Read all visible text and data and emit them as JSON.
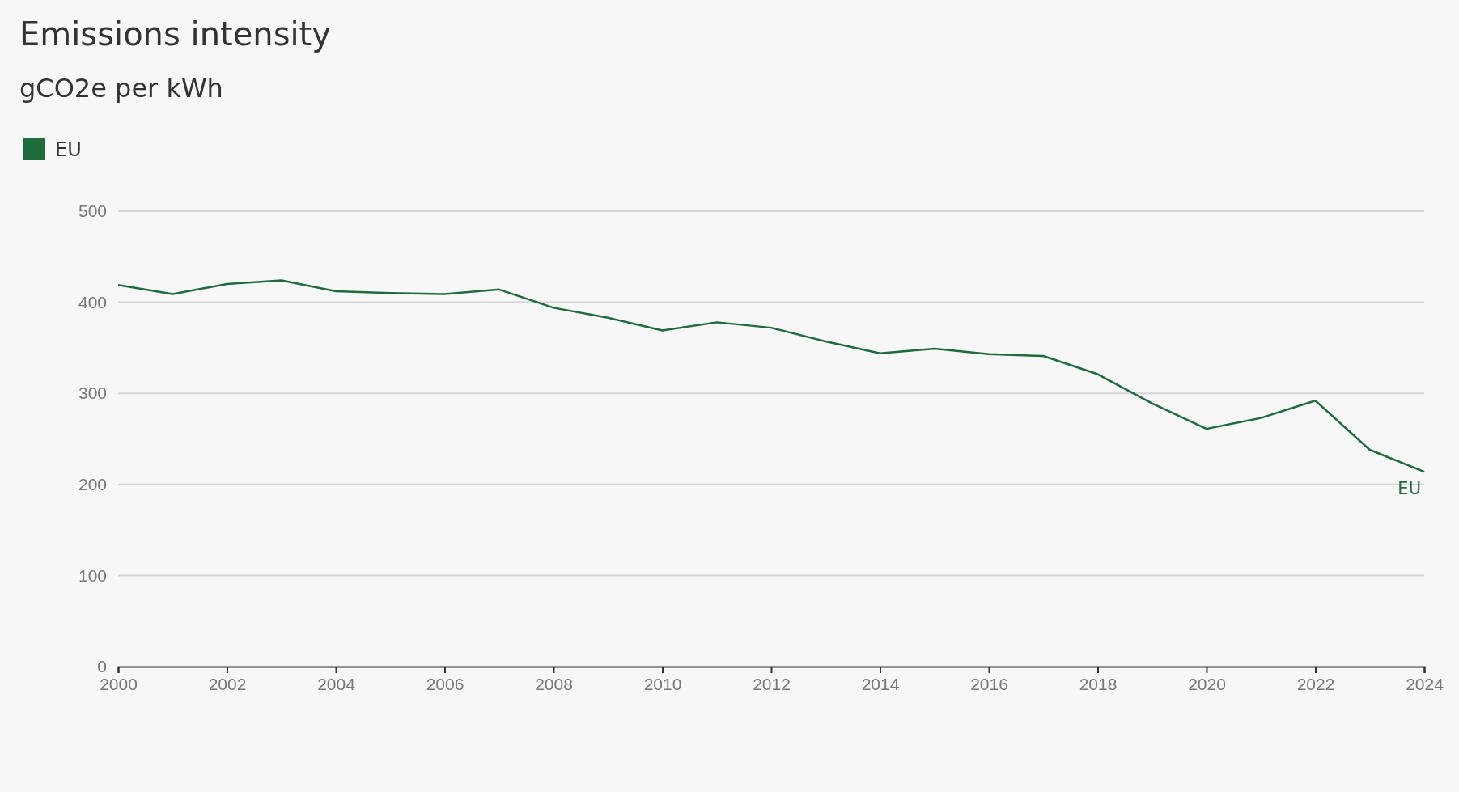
{
  "chart_data": {
    "type": "line",
    "title": "Emissions intensity",
    "subtitle": "gCO2e per kWh",
    "x": [
      2000,
      2001,
      2002,
      2003,
      2004,
      2005,
      2006,
      2007,
      2008,
      2009,
      2010,
      2011,
      2012,
      2013,
      2014,
      2015,
      2016,
      2017,
      2018,
      2019,
      2020,
      2021,
      2022,
      2023,
      2024
    ],
    "series": [
      {
        "name": "EU",
        "color": "#1e6b3c",
        "values": [
          419,
          409,
          420,
          424,
          412,
          410,
          409,
          414,
          394,
          383,
          369,
          378,
          372,
          357,
          344,
          349,
          343,
          341,
          321,
          289,
          261,
          273,
          292,
          238,
          214
        ]
      }
    ],
    "xlim": [
      2000,
      2024
    ],
    "xticks": [
      2000,
      2002,
      2004,
      2006,
      2008,
      2010,
      2012,
      2014,
      2016,
      2018,
      2020,
      2022,
      2024
    ],
    "ylim": [
      0,
      500
    ],
    "yticks": [
      0,
      100,
      200,
      300,
      400,
      500
    ],
    "grid": "y",
    "legend": "top left",
    "marker": "none",
    "line_style": "solid"
  }
}
